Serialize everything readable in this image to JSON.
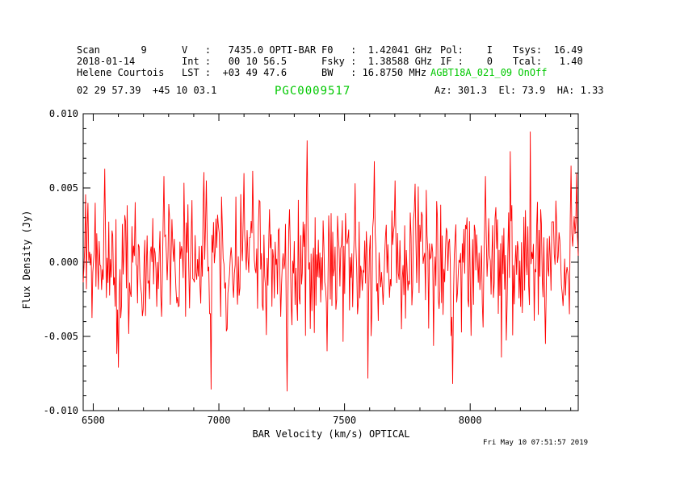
{
  "colors": {
    "background": "#ffffff",
    "text": "#000000",
    "accent_green": "#00c800",
    "trace_red": "#ff0000"
  },
  "header": {
    "scan": "Scan       9",
    "velocity": "V   :   7435.0 OPTI-BAR",
    "f0": "F0   :  1.42041 GHz",
    "pol": "Pol:    I",
    "tsys": "Tsys:  16.49",
    "date": "2018-01-14",
    "integration": "Int :   00 10 56.5",
    "fsky": "Fsky :  1.38588 GHz",
    "if": "IF :    0",
    "tcal": "Tcal:   1.40",
    "observer": "Helene Courtois",
    "lst": "LST :  +03 49 47.6",
    "bw": "BW   : 16.8750 MHz",
    "project": "AGBT18A_021_09 OnOff",
    "radec": "02 29 57.39  +45 10 03.1",
    "source": "PGC0009517",
    "azelha": "Az: 301.3  El: 73.9  HA: 1.33"
  },
  "footer": {
    "timestamp": "Fri May 10 07:51:57 2019"
  },
  "chart_data": {
    "type": "line",
    "title": "PGC0009517",
    "xlabel": "BAR Velocity (km/s) OPTICAL",
    "ylabel": "Flux Density (Jy)",
    "xlim": [
      6460,
      8430
    ],
    "ylim": [
      -0.01,
      0.01
    ],
    "grid": false,
    "frame": true,
    "x_major_ticks": [
      6500,
      7000,
      7500,
      8000
    ],
    "x_tick_labels": [
      "6500",
      "7000",
      "7500",
      "8000"
    ],
    "x_minor_step": 100,
    "y_major_ticks": [
      -0.01,
      -0.005,
      0.0,
      0.005,
      0.01
    ],
    "y_tick_labels": [
      "-0.010",
      "-0.005",
      "0.000",
      "0.005",
      "0.010"
    ],
    "y_minor_step": 0.001,
    "series": [
      {
        "name": "spectrum",
        "color": "#ff0000",
        "kind": "gaussian-noise-spectrum",
        "baseline_jy": 0.0,
        "noise_sigma_jy": 0.0022,
        "n_points": 620,
        "seed": 95172019,
        "clip_jy": 0.0088,
        "spikes": [
          {
            "x": 6545,
            "y": 0.0063
          },
          {
            "x": 6600,
            "y": -0.0071
          },
          {
            "x": 6780,
            "y": 0.0058
          },
          {
            "x": 6950,
            "y": 0.0055
          },
          {
            "x": 7100,
            "y": 0.006
          },
          {
            "x": 7270,
            "y": -0.0087
          },
          {
            "x": 7350,
            "y": 0.0082
          },
          {
            "x": 7430,
            "y": -0.006
          },
          {
            "x": 7620,
            "y": 0.0068
          },
          {
            "x": 7700,
            "y": 0.0055
          },
          {
            "x": 7930,
            "y": -0.0082
          },
          {
            "x": 8060,
            "y": 0.0058
          },
          {
            "x": 8300,
            "y": -0.0055
          },
          {
            "x": 8400,
            "y": 0.0065
          },
          {
            "x": 8425,
            "y": 0.006
          }
        ]
      }
    ]
  }
}
